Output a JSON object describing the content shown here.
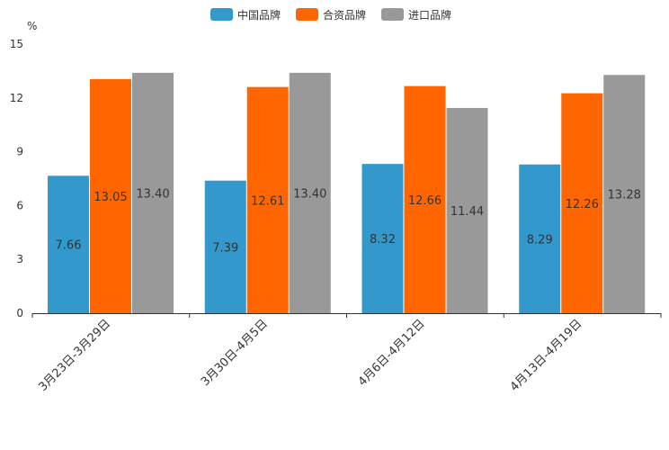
{
  "chart_data": {
    "type": "bar",
    "title": "",
    "xlabel": "",
    "ylabel": "%",
    "ylim": [
      0,
      15
    ],
    "yticks": [
      0,
      3,
      6,
      9,
      12,
      15
    ],
    "grid": false,
    "legend_position": "top-center",
    "categories": [
      "3月23日-3月29日",
      "3月30日-4月5日",
      "4月6日-4月12日",
      "4月13日-4月19日"
    ],
    "series": [
      {
        "name": "中国品牌",
        "color": "#3399cc",
        "values": [
          7.66,
          7.39,
          8.32,
          8.29
        ]
      },
      {
        "name": "合资品牌",
        "color": "#ff6600",
        "values": [
          13.05,
          12.61,
          12.66,
          12.26
        ]
      },
      {
        "name": "进口品牌",
        "color": "#999999",
        "values": [
          13.4,
          13.4,
          11.44,
          13.28
        ]
      }
    ]
  }
}
